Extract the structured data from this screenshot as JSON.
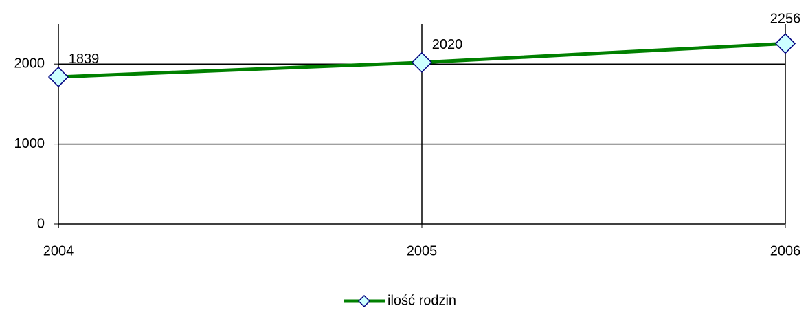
{
  "chart_data": {
    "type": "line",
    "categories": [
      "2004",
      "2005",
      "2006"
    ],
    "series": [
      {
        "name": "ilość rodzin",
        "color": "#008000",
        "marker_color": "#ccffff",
        "values": [
          1839,
          2020,
          2256
        ]
      }
    ],
    "ylim": [
      0,
      2500
    ],
    "yticks": [
      0,
      1000,
      2000
    ],
    "grid": true,
    "legend": "bottom"
  }
}
